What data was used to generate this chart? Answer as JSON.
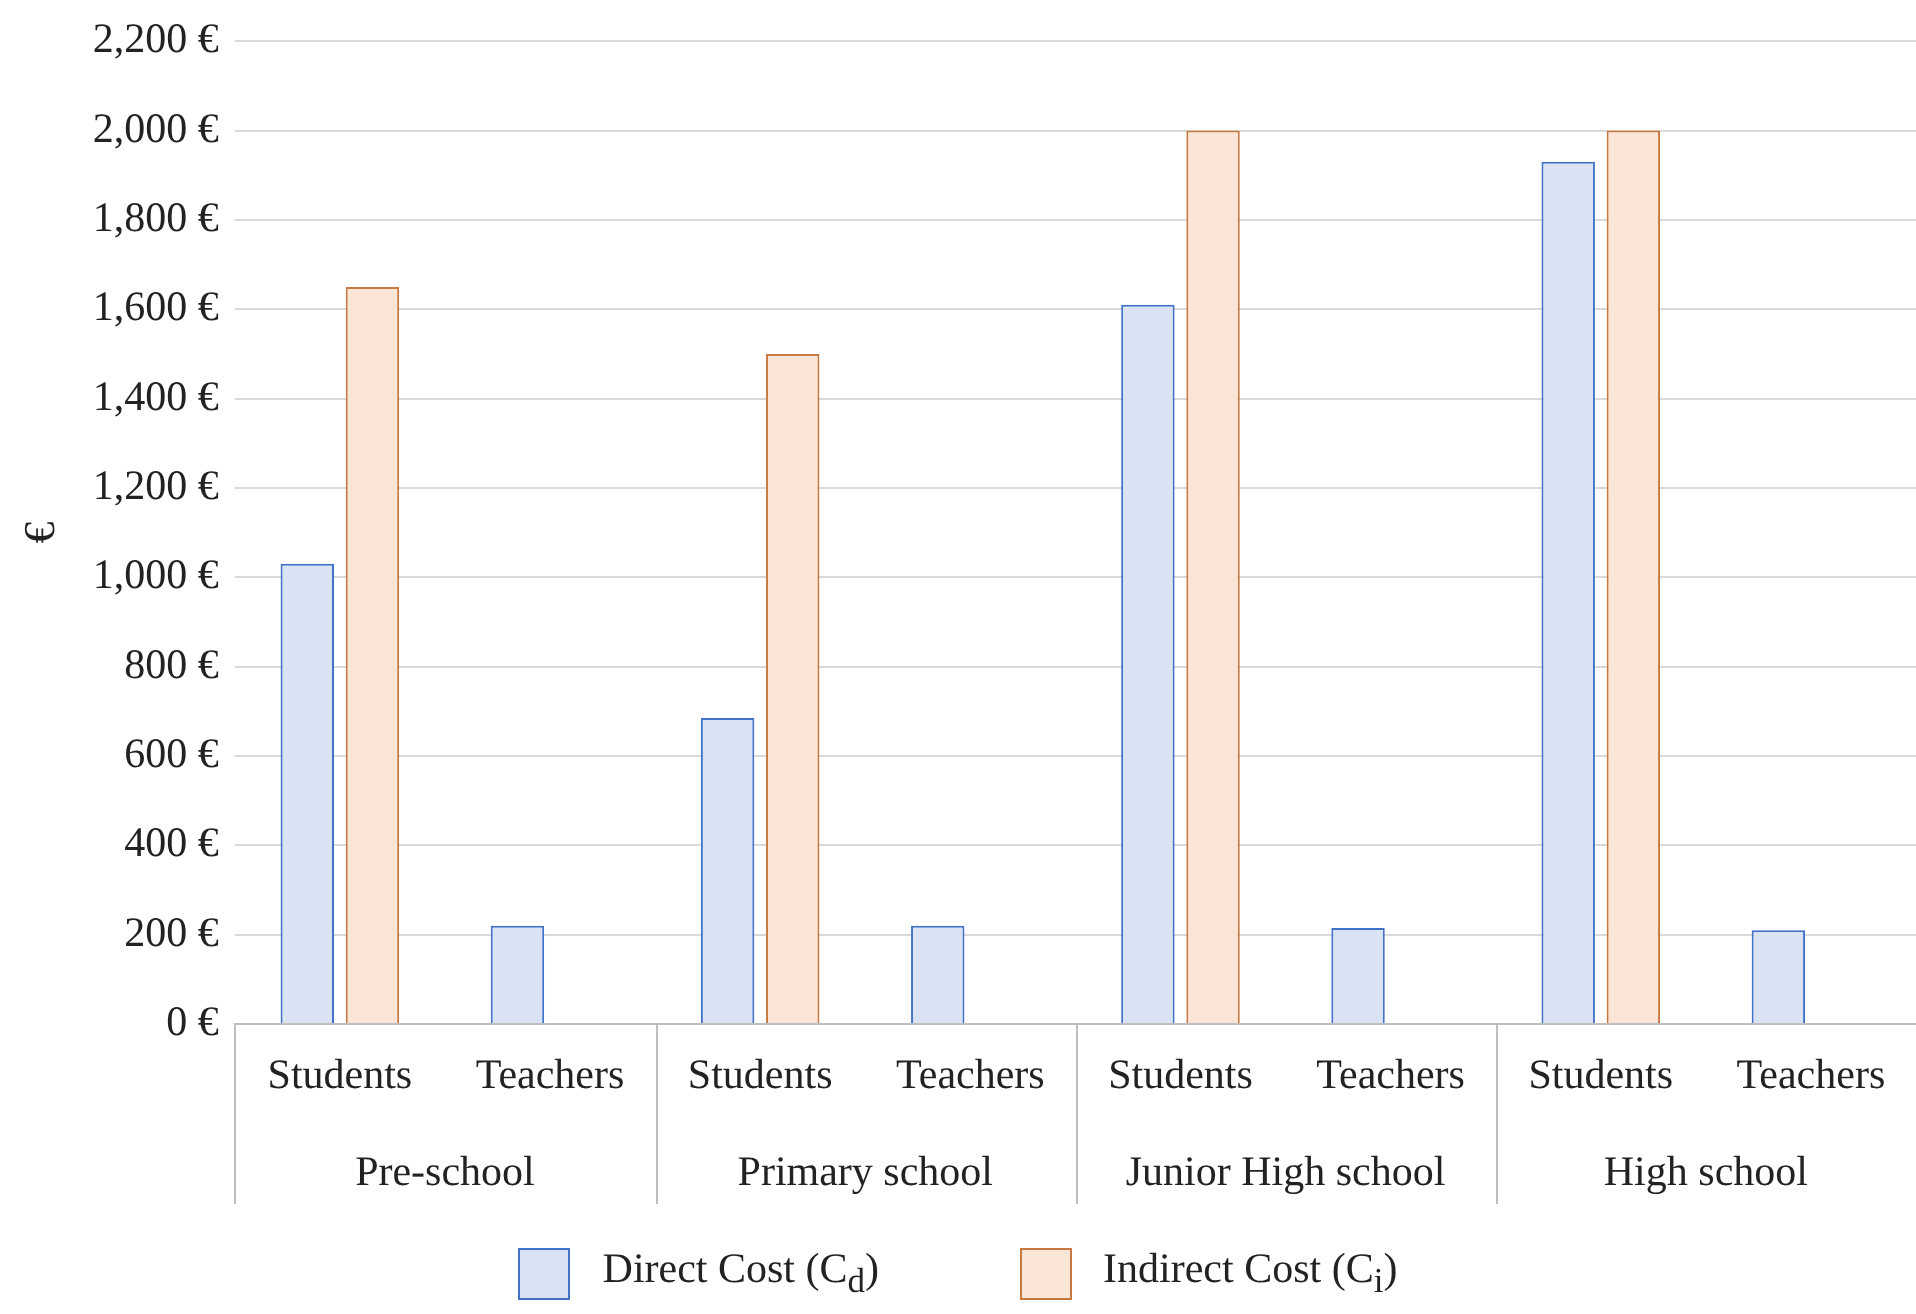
{
  "chart_data": {
    "type": "bar",
    "ylabel": "€",
    "categories": [
      "Students",
      "Teachers",
      "Students",
      "Teachers",
      "Students",
      "Teachers",
      "Students",
      "Teachers"
    ],
    "annotations": [
      "Pre-school",
      "Primary school",
      "Junior High school",
      "High school"
    ],
    "series": [
      {
        "name": "Direct Cost (C$_{d}$)",
        "color": "#dae3f3",
        "values": [
          1030,
          220,
          685,
          220,
          1610,
          215,
          1930,
          210
        ]
      },
      {
        "name": "Indirect Cost (C$_{i}$)",
        "color": "#fbe5d6",
        "values": [
          1650,
          null,
          1500,
          null,
          2000,
          null,
          2000,
          null
        ]
      }
    ],
    "ylim": [
      0,
      2200
    ],
    "yticks": [
      {
        "value": 0,
        "label": "0 €"
      },
      {
        "value": 200,
        "label": "200 €"
      },
      {
        "value": 400,
        "label": "400 €"
      },
      {
        "value": 600,
        "label": "600 €"
      },
      {
        "value": 800,
        "label": "800 €"
      },
      {
        "value": 1000,
        "label": "1,000 €"
      },
      {
        "value": 1200,
        "label": "1,200 €"
      },
      {
        "value": 1400,
        "label": "1,400 €"
      },
      {
        "value": 1600,
        "label": "1,600 €"
      },
      {
        "value": 1800,
        "label": "1,800 €"
      },
      {
        "value": 2000,
        "label": "2,000 €"
      },
      {
        "value": 2200,
        "label": "2,200 €"
      }
    ],
    "grid": "y",
    "legend": "bottom"
  }
}
